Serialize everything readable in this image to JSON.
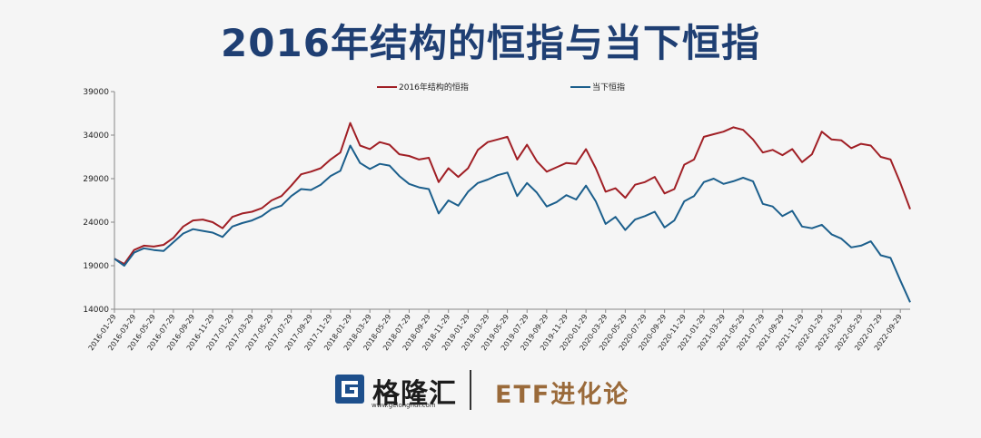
{
  "title": "2016年结构的恒指与当下恒指",
  "footer": {
    "brand": "格隆汇",
    "url": "www.gelonghui.com",
    "product": "ETF进化论"
  },
  "chart_data": {
    "type": "line",
    "title": "",
    "xlabel": "",
    "ylabel": "",
    "ylim": [
      14000,
      39000
    ],
    "yticks": [
      "14000",
      "19000",
      "24000",
      "29000",
      "34000",
      "39000"
    ],
    "xticks": [
      "2016-01-29",
      "2016-03-29",
      "2016-05-29",
      "2016-07-29",
      "2016-09-29",
      "2016-11-29",
      "2017-01-29",
      "2017-03-29",
      "2017-05-29",
      "2017-07-29",
      "2017-09-29",
      "2017-11-29",
      "2018-01-29",
      "2018-03-29",
      "2018-05-29",
      "2018-07-29",
      "2018-09-29",
      "2018-11-29",
      "2019-01-29",
      "2019-03-29",
      "2019-05-29",
      "2019-07-29",
      "2019-09-29",
      "2019-11-29",
      "2020-01-29",
      "2020-03-29",
      "2020-05-29",
      "2020-07-29",
      "2020-09-29",
      "2020-11-29",
      "2021-01-29",
      "2021-03-29",
      "2021-05-29",
      "2021-07-29",
      "2021-09-29",
      "2021-11-29",
      "2022-01-29",
      "2022-03-29",
      "2022-05-29",
      "2022-07-29",
      "2022-09-29"
    ],
    "x_start": "2016-01-29",
    "x_end": "2022-10-29",
    "grid": false,
    "legend": "top",
    "series": [
      {
        "name": "2016年结构的恒指",
        "color": "#a01f25",
        "values": [
          [
            "2016-01-29",
            19800
          ],
          [
            "2016-02-29",
            19200
          ],
          [
            "2016-03-29",
            20800
          ],
          [
            "2016-04-29",
            21300
          ],
          [
            "2016-05-29",
            21200
          ],
          [
            "2016-06-29",
            21400
          ],
          [
            "2016-07-29",
            22200
          ],
          [
            "2016-08-29",
            23500
          ],
          [
            "2016-09-29",
            24200
          ],
          [
            "2016-10-29",
            24300
          ],
          [
            "2016-11-29",
            24000
          ],
          [
            "2016-12-29",
            23300
          ],
          [
            "2017-01-29",
            24600
          ],
          [
            "2017-02-29",
            25000
          ],
          [
            "2017-03-29",
            25200
          ],
          [
            "2017-04-29",
            25600
          ],
          [
            "2017-05-29",
            26500
          ],
          [
            "2017-06-29",
            27000
          ],
          [
            "2017-07-29",
            28200
          ],
          [
            "2017-08-29",
            29500
          ],
          [
            "2017-09-29",
            29800
          ],
          [
            "2017-10-29",
            30200
          ],
          [
            "2017-11-29",
            31200
          ],
          [
            "2017-12-29",
            32000
          ],
          [
            "2018-01-29",
            35400
          ],
          [
            "2018-02-29",
            32800
          ],
          [
            "2018-03-29",
            32400
          ],
          [
            "2018-04-29",
            33200
          ],
          [
            "2018-05-29",
            32900
          ],
          [
            "2018-06-29",
            31800
          ],
          [
            "2018-07-29",
            31600
          ],
          [
            "2018-08-29",
            31200
          ],
          [
            "2018-09-29",
            31400
          ],
          [
            "2018-10-29",
            28600
          ],
          [
            "2018-11-29",
            30200
          ],
          [
            "2018-12-29",
            29200
          ],
          [
            "2019-01-29",
            30200
          ],
          [
            "2019-02-29",
            32300
          ],
          [
            "2019-03-29",
            33200
          ],
          [
            "2019-04-29",
            33500
          ],
          [
            "2019-05-29",
            33800
          ],
          [
            "2019-06-29",
            31200
          ],
          [
            "2019-07-29",
            32900
          ],
          [
            "2019-08-29",
            31000
          ],
          [
            "2019-09-29",
            29800
          ],
          [
            "2019-10-29",
            30300
          ],
          [
            "2019-11-29",
            30800
          ],
          [
            "2019-12-29",
            30700
          ],
          [
            "2020-01-29",
            32400
          ],
          [
            "2020-02-29",
            30200
          ],
          [
            "2020-03-29",
            27500
          ],
          [
            "2020-04-29",
            27900
          ],
          [
            "2020-05-29",
            26800
          ],
          [
            "2020-06-29",
            28300
          ],
          [
            "2020-07-29",
            28600
          ],
          [
            "2020-08-29",
            29200
          ],
          [
            "2020-09-29",
            27300
          ],
          [
            "2020-10-29",
            27800
          ],
          [
            "2020-11-29",
            30600
          ],
          [
            "2020-12-29",
            31200
          ],
          [
            "2021-01-29",
            33800
          ],
          [
            "2021-02-29",
            34100
          ],
          [
            "2021-03-29",
            34400
          ],
          [
            "2021-04-29",
            34900
          ],
          [
            "2021-05-29",
            34600
          ],
          [
            "2021-06-29",
            33500
          ],
          [
            "2021-07-29",
            32000
          ],
          [
            "2021-08-29",
            32300
          ],
          [
            "2021-09-29",
            31700
          ],
          [
            "2021-10-29",
            32400
          ],
          [
            "2021-11-29",
            30900
          ],
          [
            "2021-12-29",
            31800
          ],
          [
            "2022-01-29",
            34400
          ],
          [
            "2022-02-29",
            33500
          ],
          [
            "2022-03-29",
            33400
          ],
          [
            "2022-04-29",
            32500
          ],
          [
            "2022-05-29",
            33000
          ],
          [
            "2022-06-29",
            32800
          ],
          [
            "2022-07-29",
            31500
          ],
          [
            "2022-08-29",
            31200
          ],
          [
            "2022-09-29",
            28500
          ],
          [
            "2022-10-29",
            25500
          ]
        ]
      },
      {
        "name": "当下恒指",
        "color": "#1c5f8c",
        "values": [
          [
            "2016-01-29",
            19800
          ],
          [
            "2016-02-29",
            19000
          ],
          [
            "2016-03-29",
            20500
          ],
          [
            "2016-04-29",
            21000
          ],
          [
            "2016-05-29",
            20800
          ],
          [
            "2016-06-29",
            20700
          ],
          [
            "2016-07-29",
            21700
          ],
          [
            "2016-08-29",
            22700
          ],
          [
            "2016-09-29",
            23200
          ],
          [
            "2016-10-29",
            23000
          ],
          [
            "2016-11-29",
            22800
          ],
          [
            "2016-12-29",
            22300
          ],
          [
            "2017-01-29",
            23500
          ],
          [
            "2017-02-29",
            23900
          ],
          [
            "2017-03-29",
            24200
          ],
          [
            "2017-04-29",
            24700
          ],
          [
            "2017-05-29",
            25500
          ],
          [
            "2017-06-29",
            25900
          ],
          [
            "2017-07-29",
            27000
          ],
          [
            "2017-08-29",
            27800
          ],
          [
            "2017-09-29",
            27700
          ],
          [
            "2017-10-29",
            28300
          ],
          [
            "2017-11-29",
            29300
          ],
          [
            "2017-12-29",
            29900
          ],
          [
            "2018-01-29",
            32800
          ],
          [
            "2018-02-29",
            30800
          ],
          [
            "2018-03-29",
            30100
          ],
          [
            "2018-04-29",
            30700
          ],
          [
            "2018-05-29",
            30500
          ],
          [
            "2018-06-29",
            29300
          ],
          [
            "2018-07-29",
            28400
          ],
          [
            "2018-08-29",
            28000
          ],
          [
            "2018-09-29",
            27800
          ],
          [
            "2018-10-29",
            25000
          ],
          [
            "2018-11-29",
            26500
          ],
          [
            "2018-12-29",
            25900
          ],
          [
            "2019-01-29",
            27500
          ],
          [
            "2019-02-29",
            28500
          ],
          [
            "2019-03-29",
            28900
          ],
          [
            "2019-04-29",
            29400
          ],
          [
            "2019-05-29",
            29700
          ],
          [
            "2019-06-29",
            27000
          ],
          [
            "2019-07-29",
            28500
          ],
          [
            "2019-08-29",
            27400
          ],
          [
            "2019-09-29",
            25800
          ],
          [
            "2019-10-29",
            26300
          ],
          [
            "2019-11-29",
            27100
          ],
          [
            "2019-12-29",
            26600
          ],
          [
            "2020-01-29",
            28200
          ],
          [
            "2020-02-29",
            26400
          ],
          [
            "2020-03-29",
            23800
          ],
          [
            "2020-04-29",
            24600
          ],
          [
            "2020-05-29",
            23100
          ],
          [
            "2020-06-29",
            24300
          ],
          [
            "2020-07-29",
            24700
          ],
          [
            "2020-08-29",
            25200
          ],
          [
            "2020-09-29",
            23400
          ],
          [
            "2020-10-29",
            24200
          ],
          [
            "2020-11-29",
            26400
          ],
          [
            "2020-12-29",
            27000
          ],
          [
            "2021-01-29",
            28600
          ],
          [
            "2021-02-29",
            29000
          ],
          [
            "2021-03-29",
            28400
          ],
          [
            "2021-04-29",
            28700
          ],
          [
            "2021-05-29",
            29100
          ],
          [
            "2021-06-29",
            28700
          ],
          [
            "2021-07-29",
            26100
          ],
          [
            "2021-08-29",
            25800
          ],
          [
            "2021-09-29",
            24700
          ],
          [
            "2021-10-29",
            25300
          ],
          [
            "2021-11-29",
            23500
          ],
          [
            "2021-12-29",
            23300
          ],
          [
            "2022-01-29",
            23700
          ],
          [
            "2022-02-29",
            22600
          ],
          [
            "2022-03-29",
            22100
          ],
          [
            "2022-04-29",
            21100
          ],
          [
            "2022-05-29",
            21300
          ],
          [
            "2022-06-29",
            21800
          ],
          [
            "2022-07-29",
            20200
          ],
          [
            "2022-08-29",
            19900
          ],
          [
            "2022-09-29",
            17300
          ],
          [
            "2022-10-29",
            14800
          ]
        ]
      }
    ]
  }
}
